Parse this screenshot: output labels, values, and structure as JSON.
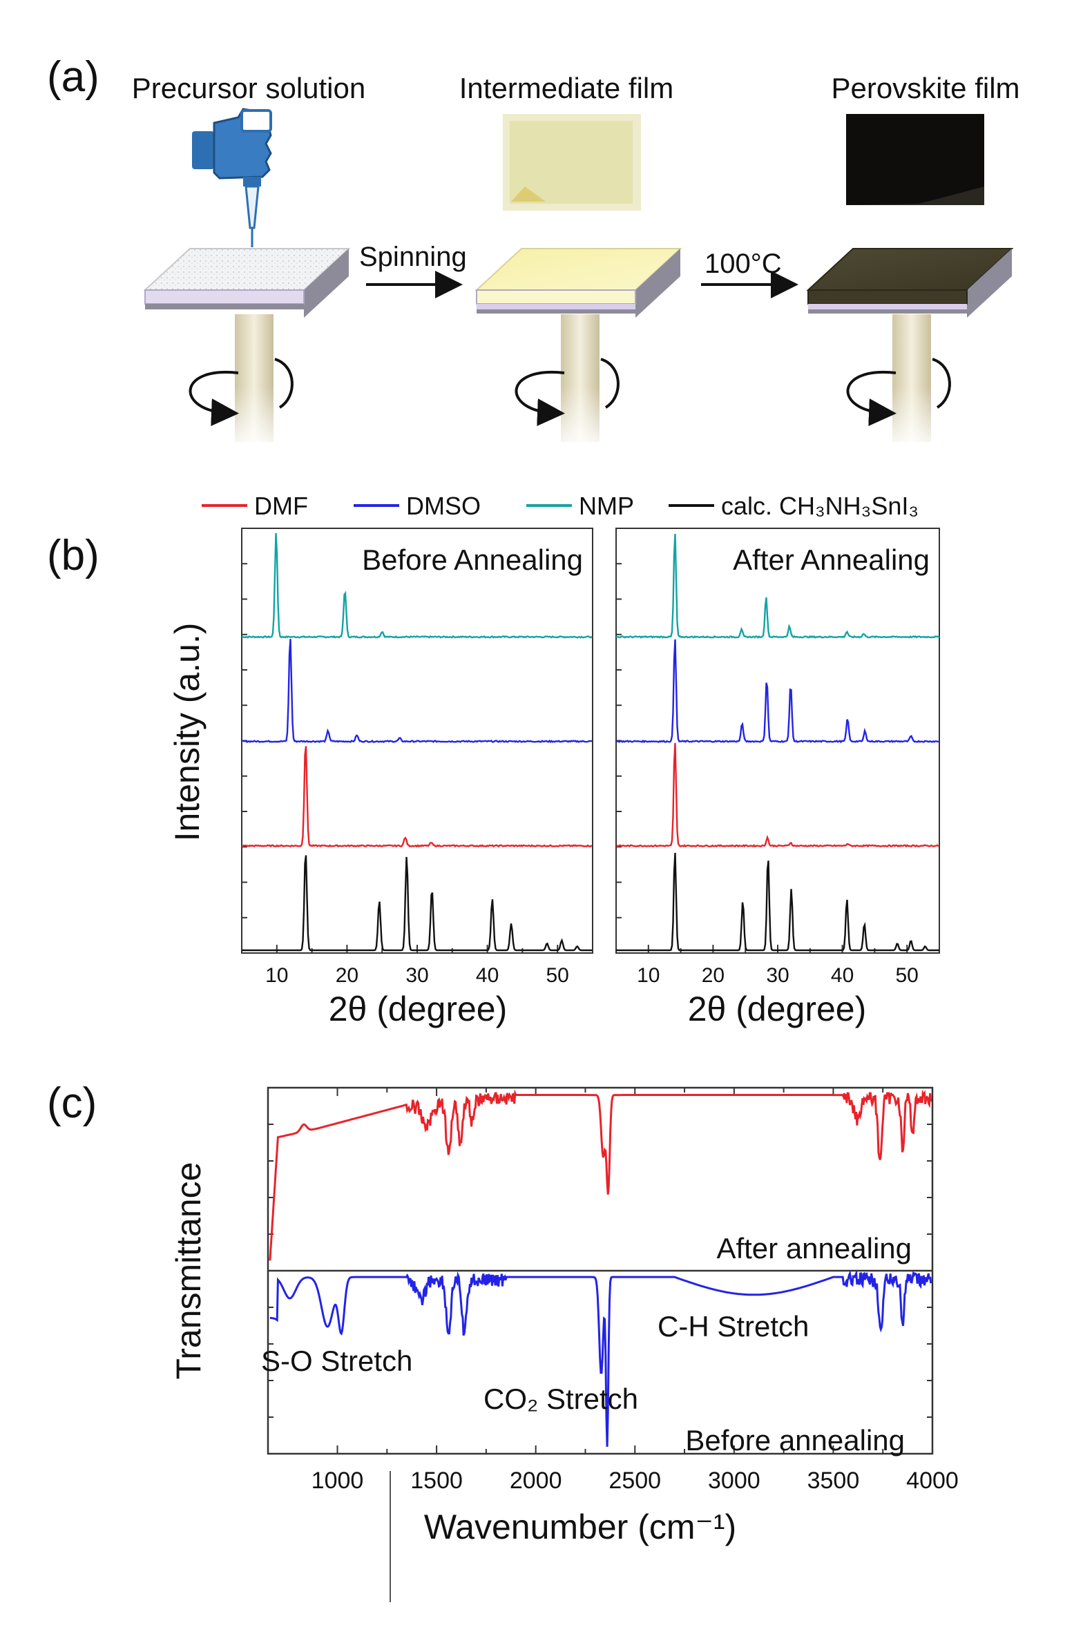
{
  "panels": {
    "a": {
      "letter": "(a)",
      "steps": [
        "Precursor solution",
        "Intermediate film",
        "Perovskite film"
      ],
      "arrows": [
        "Spinning",
        "100°C"
      ]
    },
    "b": {
      "letter": "(b)",
      "legend": [
        {
          "label": "DMF",
          "color": "#e8232a"
        },
        {
          "label": "DMSO",
          "color": "#2323e8"
        },
        {
          "label": "NMP",
          "color": "#14a3a3"
        },
        {
          "label": "calc. CH₃NH₃SnI₃",
          "color": "#111111"
        }
      ],
      "ylabel": "Intensity (a.u.)",
      "xlabel": "2θ (degree)"
    },
    "c": {
      "letter": "(c)",
      "ylabel": "Transmittance",
      "xlabel": "Wavenumber (cm⁻¹)",
      "annotations": {
        "after": "After annealing",
        "before": "Before annealing",
        "so": "S-O Stretch",
        "co2": "CO₂ Stretch",
        "ch": "C-H Stretch"
      }
    }
  },
  "chart_data": [
    {
      "type": "line",
      "title": "Before Annealing",
      "xlabel": "2θ (degree)",
      "ylabel": "Intensity (a.u.)",
      "xlim": [
        5,
        55
      ],
      "xticks": [
        10,
        20,
        30,
        40,
        50
      ],
      "series": [
        {
          "name": "NMP",
          "color": "#14a3a3",
          "peaks": [
            [
              9.9,
              1.0
            ],
            [
              19.7,
              0.45
            ],
            [
              25,
              0.05
            ]
          ]
        },
        {
          "name": "DMSO",
          "color": "#2323e8",
          "peaks": [
            [
              11.9,
              1.0
            ],
            [
              17.3,
              0.1
            ],
            [
              21.4,
              0.06
            ],
            [
              27.5,
              0.03
            ]
          ]
        },
        {
          "name": "DMF",
          "color": "#e8232a",
          "peaks": [
            [
              14.1,
              1.0
            ],
            [
              28.3,
              0.08
            ],
            [
              32,
              0.03
            ]
          ]
        },
        {
          "name": "calc. CH₃NH₃SnI₃",
          "color": "#111111",
          "peaks": [
            [
              14.1,
              1.0
            ],
            [
              24.6,
              0.5
            ],
            [
              28.5,
              0.95
            ],
            [
              32.1,
              0.62
            ],
            [
              40.7,
              0.52
            ],
            [
              43.4,
              0.27
            ],
            [
              48.5,
              0.07
            ],
            [
              50.6,
              0.1
            ],
            [
              52.8,
              0.04
            ]
          ]
        }
      ]
    },
    {
      "type": "line",
      "title": "After Annealing",
      "xlabel": "2θ (degree)",
      "ylabel": "Intensity (a.u.)",
      "xlim": [
        5,
        55
      ],
      "xticks": [
        10,
        20,
        30,
        40,
        50
      ],
      "series": [
        {
          "name": "NMP",
          "color": "#14a3a3",
          "peaks": [
            [
              14.1,
              1.0
            ],
            [
              24.4,
              0.07
            ],
            [
              28.2,
              0.38
            ],
            [
              31.8,
              0.1
            ],
            [
              40.7,
              0.05
            ],
            [
              43.3,
              0.03
            ]
          ]
        },
        {
          "name": "DMSO",
          "color": "#2323e8",
          "peaks": [
            [
              14.1,
              1.0
            ],
            [
              24.5,
              0.17
            ],
            [
              28.3,
              0.6
            ],
            [
              32,
              0.55
            ],
            [
              40.8,
              0.22
            ],
            [
              43.5,
              0.1
            ],
            [
              50.6,
              0.05
            ]
          ]
        },
        {
          "name": "DMF",
          "color": "#e8232a",
          "peaks": [
            [
              14.1,
              1.0
            ],
            [
              28.4,
              0.08
            ],
            [
              32,
              0.03
            ],
            [
              40.8,
              0.02
            ]
          ]
        },
        {
          "name": "calc. CH₃NH₃SnI₃",
          "color": "#111111",
          "peaks": [
            [
              14.1,
              1.0
            ],
            [
              24.6,
              0.5
            ],
            [
              28.5,
              0.95
            ],
            [
              32.1,
              0.62
            ],
            [
              40.7,
              0.52
            ],
            [
              43.4,
              0.27
            ],
            [
              48.5,
              0.07
            ],
            [
              50.6,
              0.1
            ],
            [
              52.8,
              0.04
            ]
          ]
        }
      ]
    },
    {
      "type": "line",
      "title": "",
      "xlabel": "Wavenumber (cm⁻¹)",
      "ylabel": "Transmittance",
      "xlim": [
        650,
        4000
      ],
      "xticks": [
        1000,
        1500,
        2000,
        2500,
        3000,
        3500,
        4000
      ],
      "series": [
        {
          "name": "After annealing",
          "color": "#e8232a"
        },
        {
          "name": "Before annealing",
          "color": "#2323e8"
        }
      ]
    }
  ]
}
